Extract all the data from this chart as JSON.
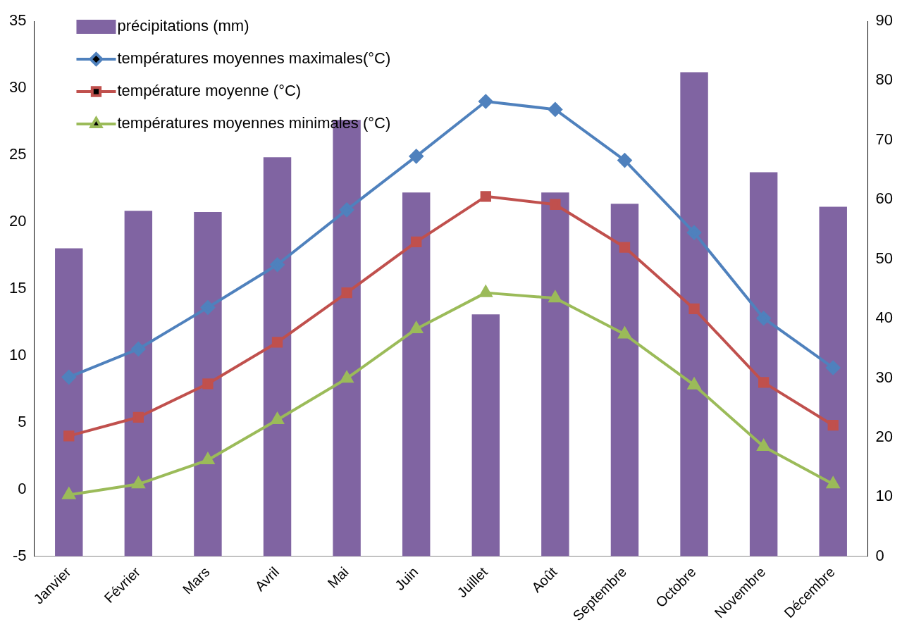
{
  "chart_data": {
    "type": "line",
    "categories": [
      "Janvier",
      "Février",
      "Mars",
      "Avril",
      "Mai",
      "Juin",
      "Juillet",
      "Août",
      "Septembre",
      "Octobre",
      "Novembre",
      "Décembre"
    ],
    "series": [
      {
        "name": "précipitations (mm)",
        "type": "bar",
        "axis": "y2",
        "color": "#8064a2",
        "values": [
          51.8,
          58.1,
          57.9,
          67.1,
          73.4,
          61.2,
          40.7,
          61.2,
          59.3,
          81.4,
          64.6,
          58.8
        ]
      },
      {
        "name": "températures moyennes maximales(°C)",
        "color": "#4f81bd",
        "marker": "diamond",
        "values": [
          8.4,
          10.5,
          13.6,
          16.8,
          20.9,
          24.9,
          29.0,
          28.4,
          24.6,
          19.2,
          12.8,
          9.1
        ]
      },
      {
        "name": "température moyenne (°C)",
        "color": "#c0504d",
        "marker": "square",
        "values": [
          4.0,
          5.4,
          7.9,
          11.0,
          14.7,
          18.5,
          21.9,
          21.3,
          18.1,
          13.5,
          8.0,
          4.8
        ]
      },
      {
        "name": "températures moyennes minimales (°C)",
        "color": "#9bbb59",
        "marker": "triangle",
        "values": [
          -0.4,
          0.4,
          2.2,
          5.2,
          8.3,
          12.0,
          14.7,
          14.3,
          11.6,
          7.8,
          3.2,
          0.4
        ]
      }
    ],
    "ylim": [
      -5,
      35
    ],
    "yticks": [
      -5,
      0,
      5,
      10,
      15,
      20,
      25,
      30,
      35
    ],
    "y2lim": [
      0,
      90
    ],
    "y2ticks": [
      0,
      10,
      20,
      30,
      40,
      50,
      60,
      70,
      80,
      90
    ],
    "grid": false,
    "legend": "top left"
  }
}
